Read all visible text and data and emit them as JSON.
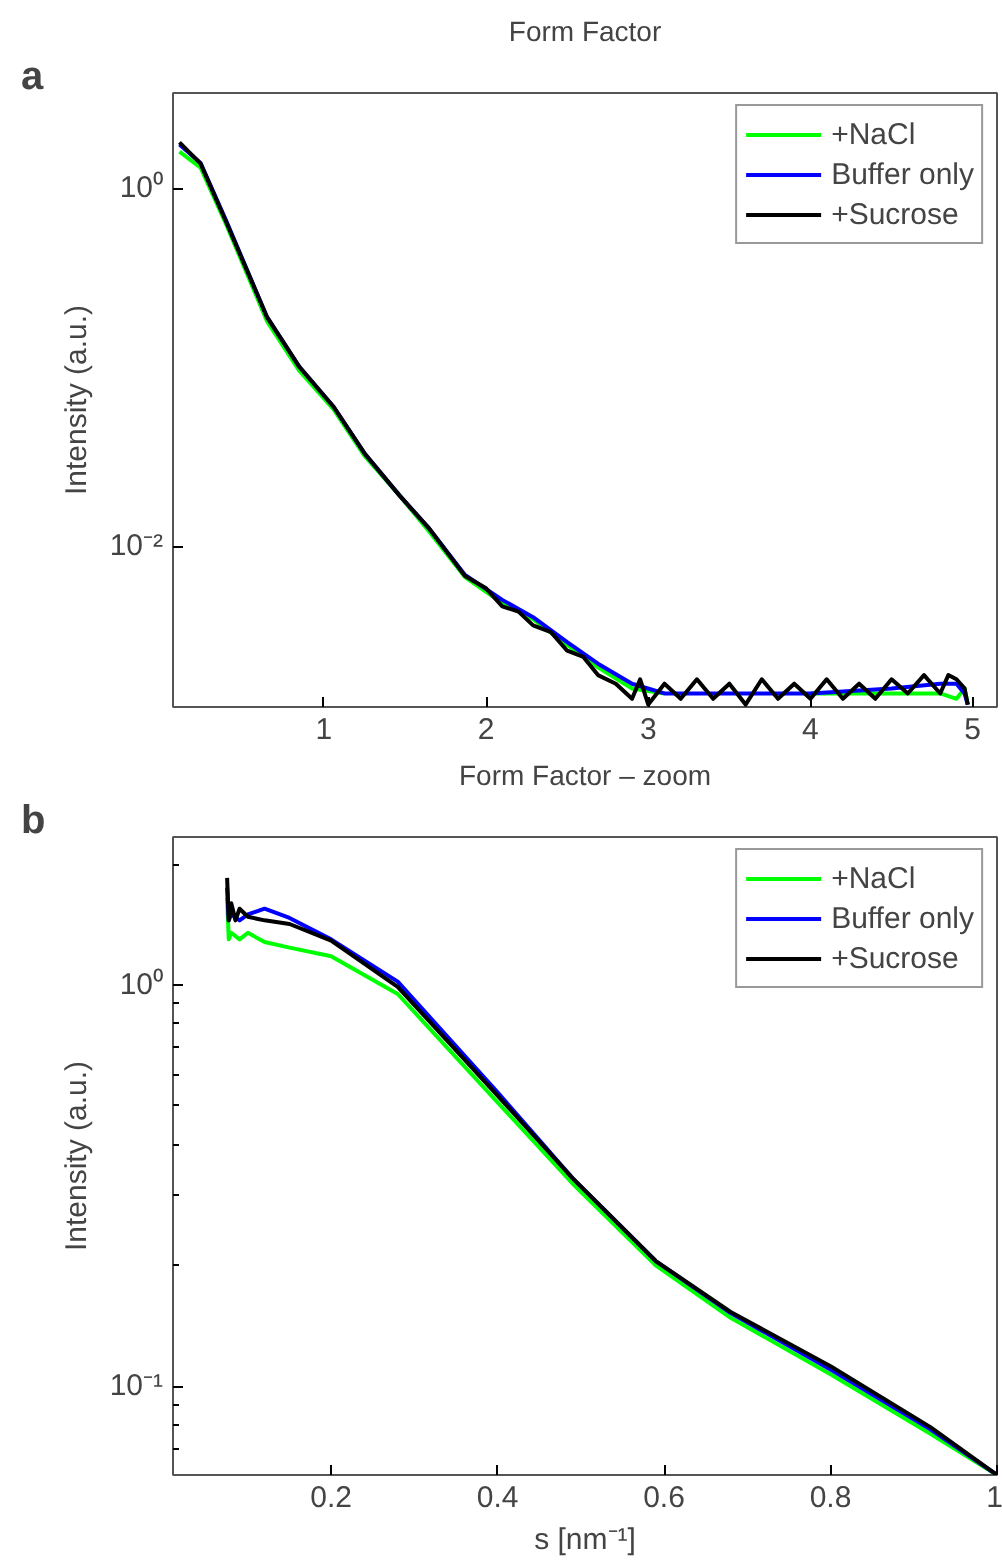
{
  "chart_data": [
    {
      "type": "line",
      "title": "Form Factor",
      "ylabel": "Intensity (a.u.)",
      "annotations": [
        "a"
      ],
      "log": "y",
      "legend": "top right",
      "grid": false,
      "xlim": [
        0.07,
        5.15
      ],
      "xticks": [
        1,
        2,
        3,
        4,
        5
      ],
      "ylim": [
        0.00126,
        3.4
      ],
      "yticks": [
        {
          "value": 1,
          "label": "10⁰"
        },
        {
          "value": 0.01,
          "label": "10⁻²"
        }
      ],
      "series": [
        {
          "name": "+NaCl",
          "color": "#00ff00",
          "x": [
            0.11,
            0.24,
            0.4,
            0.65,
            0.85,
            1.06,
            1.25,
            1.47,
            1.65,
            1.87,
            2.1,
            2.29,
            2.5,
            2.69,
            2.9,
            3.1,
            3.5,
            4.0,
            4.5,
            4.8,
            4.9,
            4.95,
            4.97
          ],
          "values": [
            1.6,
            1.3,
            0.62,
            0.18,
            0.095,
            0.058,
            0.032,
            0.019,
            0.012,
            0.0067,
            0.0048,
            0.0039,
            0.0028,
            0.0021,
            0.0016,
            0.0015,
            null,
            0.0015,
            0.0015,
            0.0015,
            0.0014,
            0.0016,
            0.0013
          ]
        },
        {
          "name": "Buffer only",
          "color": "#0000ff",
          "x": [
            0.11,
            0.24,
            0.4,
            0.65,
            0.85,
            1.06,
            1.25,
            1.47,
            1.65,
            1.87,
            2.1,
            2.29,
            2.5,
            2.69,
            2.9,
            3.1,
            3.5,
            4.0,
            4.5,
            4.8,
            4.9,
            4.95,
            4.97
          ],
          "values": [
            1.75,
            1.38,
            0.65,
            0.19,
            0.1,
            0.06,
            0.033,
            0.019,
            0.0125,
            0.0069,
            0.005,
            0.004,
            0.0029,
            0.0022,
            0.0017,
            0.0015,
            0.0015,
            0.0015,
            0.0016,
            0.0017,
            0.0017,
            0.0015,
            0.0013
          ]
        },
        {
          "name": "+Sucrose",
          "color": "#000000",
          "x": [
            0.11,
            0.24,
            0.4,
            0.65,
            0.85,
            1.06,
            1.25,
            1.47,
            1.65,
            1.87,
            2.0,
            2.1,
            2.2,
            2.29,
            2.4,
            2.5,
            2.6,
            2.69,
            2.8,
            2.9,
            2.95,
            3.0,
            3.1,
            3.2,
            3.3,
            3.4,
            3.5,
            3.6,
            3.7,
            3.8,
            3.9,
            4.0,
            4.1,
            4.2,
            4.3,
            4.4,
            4.5,
            4.6,
            4.7,
            4.8,
            4.85,
            4.9,
            4.95,
            4.97
          ],
          "values": [
            1.8,
            1.37,
            0.64,
            0.19,
            0.1,
            0.06,
            0.033,
            0.019,
            0.0125,
            0.0068,
            0.0058,
            0.0046,
            0.0043,
            0.0036,
            0.0033,
            0.0026,
            0.0024,
            0.0019,
            0.0017,
            0.0014,
            0.0018,
            0.0013,
            0.0017,
            0.0014,
            0.0018,
            0.0014,
            0.0017,
            0.0013,
            0.0018,
            0.0014,
            0.0017,
            0.0014,
            0.0018,
            0.0014,
            0.0017,
            0.0014,
            0.0018,
            0.0015,
            0.0019,
            0.0015,
            0.0019,
            0.0018,
            0.0016,
            0.0013
          ]
        }
      ]
    },
    {
      "type": "line",
      "title": "Form Factor – zoom",
      "xlabel": "s [nm⁻¹]",
      "ylabel": "Intensity (a.u.)",
      "annotations": [
        "b"
      ],
      "log": "y",
      "legend": "top right",
      "grid": false,
      "xlim": [
        0.01,
        1.0
      ],
      "xticks": [
        0.2,
        0.4,
        0.6,
        0.8,
        1
      ],
      "ylim": [
        0.06,
        2.34
      ],
      "yticks": [
        {
          "value": 0.07,
          "label": null
        },
        {
          "value": 0.08,
          "label": null
        },
        {
          "value": 0.09,
          "label": null
        },
        {
          "value": 0.1,
          "label": "10⁻¹"
        },
        {
          "value": 0.2,
          "label": null
        },
        {
          "value": 0.3,
          "label": null
        },
        {
          "value": 0.4,
          "label": null
        },
        {
          "value": 0.5,
          "label": null
        },
        {
          "value": 0.6,
          "label": null
        },
        {
          "value": 0.7,
          "label": null
        },
        {
          "value": 0.8,
          "label": null
        },
        {
          "value": 0.9,
          "label": null
        },
        {
          "value": 1,
          "label": "10⁰"
        },
        {
          "value": 2,
          "label": null
        }
      ],
      "series": [
        {
          "name": "+NaCl",
          "color": "#00ff00",
          "x": [
            0.075,
            0.077,
            0.08,
            0.09,
            0.1,
            0.12,
            0.15,
            0.2,
            0.28,
            0.4,
            0.49,
            0.59,
            0.68,
            0.8,
            0.92,
            1.0
          ],
          "values": [
            1.65,
            1.3,
            1.35,
            1.3,
            1.35,
            1.28,
            1.24,
            1.18,
            0.95,
            0.51,
            0.32,
            0.2,
            0.148,
            0.107,
            0.076,
            0.06
          ]
        },
        {
          "name": "Buffer only",
          "color": "#0000ff",
          "x": [
            0.075,
            0.077,
            0.08,
            0.09,
            0.1,
            0.12,
            0.15,
            0.2,
            0.28,
            0.4,
            0.49,
            0.59,
            0.68,
            0.8,
            0.92,
            1.0
          ],
          "values": [
            1.75,
            1.45,
            1.5,
            1.45,
            1.5,
            1.55,
            1.47,
            1.3,
            1.02,
            0.54,
            0.33,
            0.205,
            0.152,
            0.11,
            0.078,
            0.06
          ]
        },
        {
          "name": "+Sucrose",
          "color": "#000000",
          "x": [
            0.075,
            0.077,
            0.08,
            0.085,
            0.09,
            0.1,
            0.12,
            0.15,
            0.2,
            0.28,
            0.4,
            0.49,
            0.59,
            0.68,
            0.8,
            0.92,
            1.0
          ],
          "values": [
            1.85,
            1.45,
            1.6,
            1.45,
            1.55,
            1.48,
            1.45,
            1.42,
            1.29,
            0.99,
            0.53,
            0.33,
            0.205,
            0.153,
            0.112,
            0.079,
            0.06
          ]
        }
      ]
    }
  ]
}
